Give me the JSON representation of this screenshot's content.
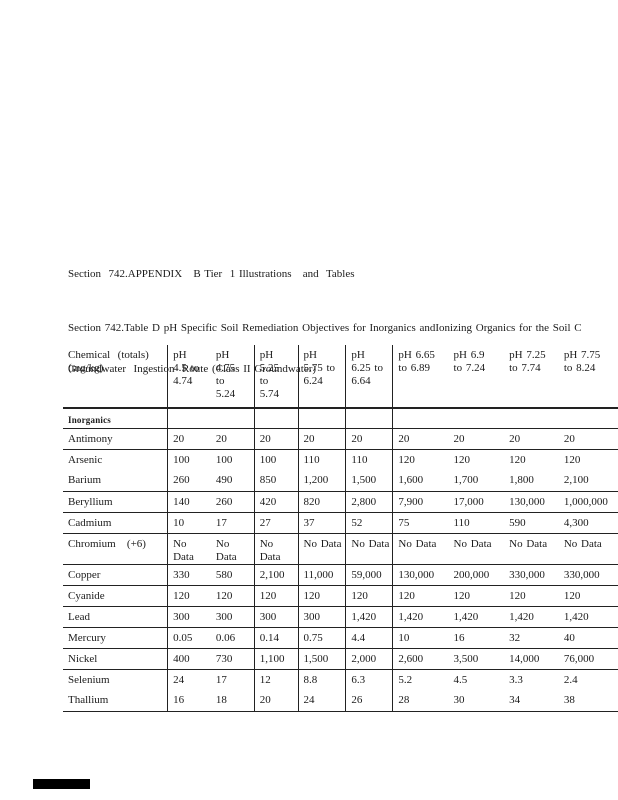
{
  "page": {
    "appendix_title": "Section  742.APPENDIX   B Tier  1 Illustrations   and  Tables",
    "caption_line1": "Section 742.Table D pH Specific Soil Remediation Objectives for Inorganics andIonizing Organics for the Soil C",
    "caption_line2": "Groundwater  Ingestion  Route (Class II Groundwater)"
  },
  "table": {
    "header": {
      "chemical": "Chemical  (totals)\n(mg/kg)",
      "ph_columns": [
        "pH\n4.5 to\n4.74",
        "pH\n4.75\nto\n5.24",
        "pH\n5.25\nto\n5.74",
        "pH\n5.75 to\n6.24",
        "pH\n6.25 to\n6.64",
        "pH 6.65\nto 6.89",
        "pH 6.9\nto 7.24",
        "pH 7.25\nto 7.74",
        "pH 7.75\nto 8.24"
      ]
    },
    "section_label": "Inorganics",
    "rows": [
      {
        "chemical": "Antimony",
        "divider": true,
        "values": [
          "20",
          "20",
          "20",
          "20",
          "20",
          "20",
          "20",
          "20",
          "20"
        ]
      },
      {
        "chemical": "Arsenic",
        "divider": false,
        "values": [
          "100",
          "100",
          "100",
          "110",
          "110",
          "120",
          "120",
          "120",
          "120"
        ]
      },
      {
        "chemical": "Barium",
        "divider": true,
        "values": [
          "260",
          "490",
          "850",
          "1,200",
          "1,500",
          "1,600",
          "1,700",
          "1,800",
          "2,100"
        ]
      },
      {
        "chemical": "Beryllium",
        "divider": true,
        "values": [
          "140",
          "260",
          "420",
          "820",
          "2,800",
          "7,900",
          "17,000",
          "130,000",
          "1,000,000"
        ]
      },
      {
        "chemical": "Cadmium",
        "divider": true,
        "values": [
          "10",
          "17",
          "27",
          "37",
          "52",
          "75",
          "110",
          "590",
          "4,300"
        ]
      },
      {
        "chemical": "Chromium   (+6)",
        "divider": true,
        "values": [
          "No Data",
          "No Data",
          "No Data",
          "No Data",
          "No Data",
          "No Data",
          "No Data",
          "No Data",
          "No Data"
        ]
      },
      {
        "chemical": "Copper",
        "divider": true,
        "values": [
          "330",
          "580",
          "2,100",
          "11,000",
          "59,000",
          "130,000",
          "200,000",
          "330,000",
          "330,000"
        ]
      },
      {
        "chemical": "Cyanide",
        "divider": true,
        "values": [
          "120",
          "120",
          "120",
          "120",
          "120",
          "120",
          "120",
          "120",
          "120"
        ]
      },
      {
        "chemical": "Lead",
        "divider": true,
        "values": [
          "300",
          "300",
          "300",
          "300",
          "1,420",
          "1,420",
          "1,420",
          "1,420",
          "1,420"
        ]
      },
      {
        "chemical": "Mercury",
        "divider": true,
        "values": [
          "0.05",
          "0.06",
          "0.14",
          "0.75",
          "4.4",
          "10",
          "16",
          "32",
          "40"
        ]
      },
      {
        "chemical": "Nickel",
        "divider": true,
        "values": [
          "400",
          "730",
          "1,100",
          "1,500",
          "2,000",
          "2,600",
          "3,500",
          "14,000",
          "76,000"
        ]
      },
      {
        "chemical": "Selenium",
        "divider": false,
        "values": [
          "24",
          "17",
          "12",
          "8.8",
          "6.3",
          "5.2",
          "4.5",
          "3.3",
          "2.4"
        ]
      },
      {
        "chemical": "Thallium",
        "divider": true,
        "values": [
          "16",
          "18",
          "20",
          "24",
          "26",
          "28",
          "30",
          "34",
          "38"
        ]
      }
    ]
  },
  "footer": {
    "redaction_bar_color": "#000000"
  }
}
